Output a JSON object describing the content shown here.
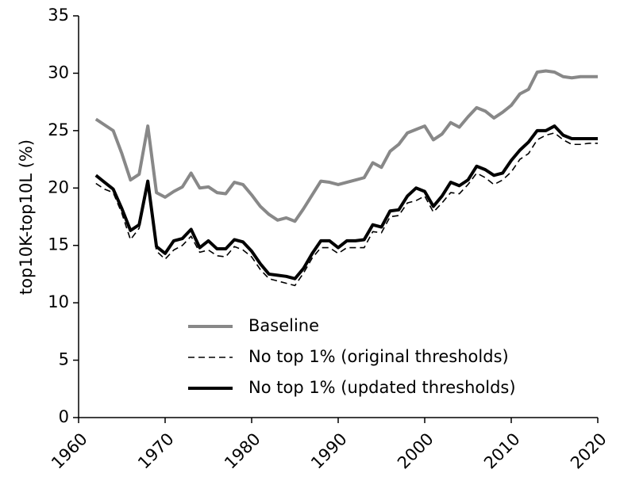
{
  "chart_data": {
    "type": "line",
    "ylabel": "top10K-top10L (%)",
    "x": [
      1962,
      1963,
      1964,
      1965,
      1966,
      1967,
      1968,
      1969,
      1970,
      1971,
      1972,
      1973,
      1974,
      1975,
      1976,
      1977,
      1978,
      1979,
      1980,
      1981,
      1982,
      1983,
      1984,
      1985,
      1986,
      1987,
      1988,
      1989,
      1990,
      1991,
      1992,
      1993,
      1994,
      1995,
      1996,
      1997,
      1998,
      1999,
      2000,
      2001,
      2002,
      2003,
      2004,
      2005,
      2006,
      2007,
      2008,
      2009,
      2010,
      2011,
      2012,
      2013,
      2014,
      2015,
      2016,
      2017,
      2018,
      2019,
      2020
    ],
    "series": [
      {
        "name": "Baseline",
        "color": "#888888",
        "dashed": false,
        "values": [
          26.0,
          25.5,
          25.0,
          23.0,
          20.7,
          21.2,
          25.4,
          19.6,
          19.2,
          19.7,
          20.1,
          21.3,
          20.0,
          20.1,
          19.6,
          19.5,
          20.5,
          20.3,
          19.4,
          18.4,
          17.7,
          17.2,
          17.4,
          17.1,
          18.2,
          19.4,
          20.6,
          20.5,
          20.3,
          20.5,
          20.7,
          20.9,
          22.2,
          21.8,
          23.2,
          23.8,
          24.8,
          25.1,
          25.4,
          24.2,
          24.7,
          25.7,
          25.3,
          26.2,
          27.0,
          26.7,
          26.1,
          26.6,
          27.2,
          28.2,
          28.6,
          30.1,
          30.2,
          30.1,
          29.7,
          29.6,
          29.7,
          29.7,
          29.7
        ]
      },
      {
        "name": "No top 1% (original thresholds)",
        "color": "#000000",
        "dashed": true,
        "values": [
          20.4,
          19.9,
          19.6,
          17.8,
          15.5,
          16.5,
          20.2,
          14.5,
          13.8,
          14.6,
          15.0,
          15.8,
          14.4,
          14.6,
          14.1,
          14.0,
          14.9,
          14.6,
          14.0,
          12.9,
          12.1,
          11.9,
          11.7,
          11.5,
          12.6,
          13.9,
          14.8,
          14.8,
          14.3,
          14.8,
          14.8,
          14.8,
          16.2,
          16.1,
          17.5,
          17.6,
          18.7,
          18.9,
          19.3,
          17.9,
          18.7,
          19.6,
          19.5,
          20.3,
          21.3,
          20.9,
          20.3,
          20.7,
          21.4,
          22.5,
          23.0,
          24.2,
          24.6,
          24.8,
          24.2,
          23.8,
          23.8,
          23.9,
          23.9
        ]
      },
      {
        "name": "No top 1% (updated thresholds)",
        "color": "#000000",
        "dashed": false,
        "values": [
          21.1,
          20.5,
          19.9,
          18.2,
          16.3,
          16.8,
          20.6,
          14.9,
          14.3,
          15.4,
          15.6,
          16.4,
          14.8,
          15.4,
          14.7,
          14.7,
          15.5,
          15.3,
          14.5,
          13.4,
          12.5,
          12.4,
          12.3,
          12.1,
          13.0,
          14.3,
          15.4,
          15.4,
          14.8,
          15.4,
          15.4,
          15.5,
          16.8,
          16.6,
          18.0,
          18.1,
          19.3,
          20.0,
          19.7,
          18.4,
          19.3,
          20.5,
          20.2,
          20.7,
          21.9,
          21.6,
          21.1,
          21.3,
          22.4,
          23.3,
          24.0,
          25.0,
          25.0,
          25.4,
          24.6,
          24.3,
          24.3,
          24.3,
          24.3
        ]
      }
    ],
    "xlim": [
      1960,
      2020
    ],
    "xticks": [
      1960,
      1970,
      1980,
      1990,
      2000,
      2010,
      2020
    ],
    "ylim": [
      0,
      35
    ],
    "yticks": [
      0,
      5,
      10,
      15,
      20,
      25,
      30,
      35
    ],
    "legend": "lower-center"
  }
}
